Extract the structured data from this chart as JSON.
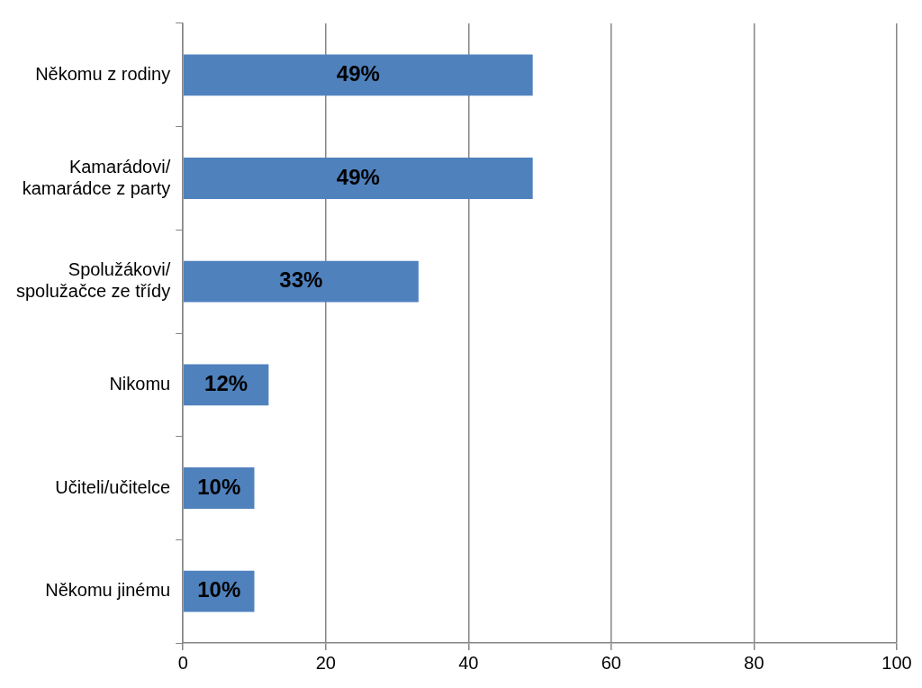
{
  "chart_data": {
    "type": "bar",
    "orientation": "horizontal",
    "categories": [
      "Někomu z rodiny",
      "Kamarádovi/ kamarádce z party",
      "Spolužákovi/ spolužačce ze třídy",
      "Nikomu",
      "Učiteli/učitelce",
      "Někomu jinému"
    ],
    "values": [
      49,
      49,
      33,
      12,
      10,
      10
    ],
    "value_labels": [
      "49%",
      "49%",
      "33%",
      "12%",
      "10%",
      "10%"
    ],
    "color": "#4f81bd",
    "xlim": [
      0,
      100
    ],
    "xticks": [
      0,
      20,
      40,
      60,
      80,
      100
    ],
    "grid": "x",
    "legend": false
  }
}
